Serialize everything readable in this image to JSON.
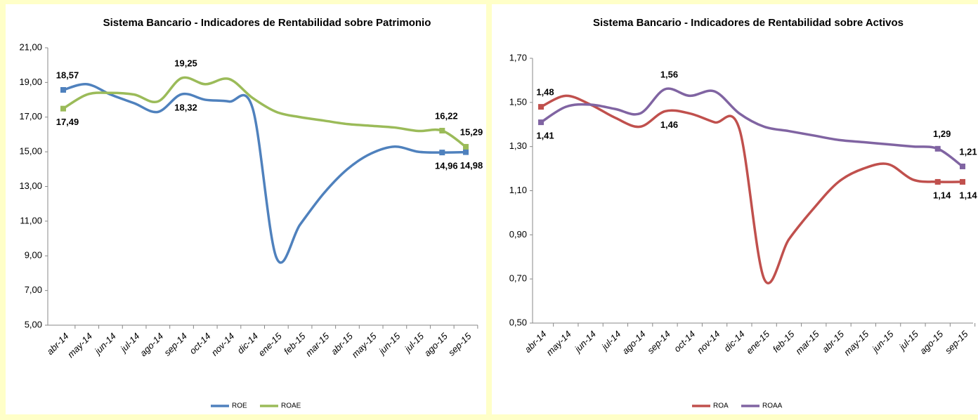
{
  "chart_data": [
    {
      "type": "line",
      "title": "Sistema Bancario - Indicadores de Rentabilidad sobre Patrimonio",
      "categories": [
        "abr-14",
        "may-14",
        "jun-14",
        "jul-14",
        "ago-14",
        "sep-14",
        "oct-14",
        "nov-14",
        "dic-14",
        "ene-15",
        "feb-15",
        "mar-15",
        "abr-15",
        "may-15",
        "jun-15",
        "jul-15",
        "ago-15",
        "sep-15"
      ],
      "series": [
        {
          "name": "ROE",
          "color": "#4f81bd",
          "values": [
            18.57,
            18.9,
            18.3,
            17.8,
            17.3,
            18.32,
            18.0,
            17.9,
            17.5,
            8.9,
            10.8,
            12.6,
            14.0,
            14.9,
            15.3,
            15.0,
            14.96,
            14.98
          ],
          "value_labels": [
            "18,57",
            null,
            null,
            null,
            null,
            "18,32",
            null,
            null,
            null,
            null,
            null,
            null,
            null,
            null,
            null,
            null,
            "14,96",
            "14,98"
          ]
        },
        {
          "name": "ROAE",
          "color": "#9bbb59",
          "values": [
            17.49,
            18.3,
            18.4,
            18.3,
            17.9,
            19.25,
            18.9,
            19.2,
            18.1,
            17.3,
            17.0,
            16.8,
            16.6,
            16.5,
            16.4,
            16.2,
            16.22,
            15.29
          ],
          "value_labels": [
            "17,49",
            null,
            null,
            null,
            null,
            "19,25",
            null,
            null,
            null,
            null,
            null,
            null,
            null,
            null,
            null,
            null,
            "16,22",
            "15,29"
          ]
        }
      ],
      "ylim": [
        5,
        21
      ],
      "yticks": [
        {
          "value": 5,
          "label": "5,00"
        },
        {
          "value": 7,
          "label": "7,00"
        },
        {
          "value": 9,
          "label": "9,00"
        },
        {
          "value": 11,
          "label": "11,00"
        },
        {
          "value": 13,
          "label": "13,00"
        },
        {
          "value": 15,
          "label": "15,00"
        },
        {
          "value": 17,
          "label": "17,00"
        },
        {
          "value": 19,
          "label": "19,00"
        },
        {
          "value": 21,
          "label": "21,00"
        }
      ]
    },
    {
      "type": "line",
      "title": "Sistema Bancario - Indicadores de Rentabilidad sobre Activos",
      "categories": [
        "abr-14",
        "may-14",
        "jun-14",
        "jul-14",
        "ago-14",
        "sep-14",
        "oct-14",
        "nov-14",
        "dic-14",
        "ene-15",
        "feb-15",
        "mar-15",
        "abr-15",
        "may-15",
        "jun-15",
        "jul-15",
        "ago-15",
        "sep-15"
      ],
      "series": [
        {
          "name": "ROA",
          "color": "#c0504d",
          "values": [
            1.48,
            1.53,
            1.49,
            1.43,
            1.39,
            1.46,
            1.45,
            1.41,
            1.38,
            0.7,
            0.88,
            1.02,
            1.14,
            1.2,
            1.22,
            1.15,
            1.14,
            1.14
          ],
          "value_labels": [
            "1,48",
            null,
            null,
            null,
            null,
            "1,46",
            null,
            null,
            null,
            null,
            null,
            null,
            null,
            null,
            null,
            null,
            "1,14",
            "1,14"
          ]
        },
        {
          "name": "ROAA",
          "color": "#8064a2",
          "values": [
            1.41,
            1.48,
            1.49,
            1.47,
            1.45,
            1.56,
            1.53,
            1.55,
            1.45,
            1.39,
            1.37,
            1.35,
            1.33,
            1.32,
            1.31,
            1.3,
            1.29,
            1.21
          ],
          "value_labels": [
            "1,41",
            null,
            null,
            null,
            null,
            "1,56",
            null,
            null,
            null,
            null,
            null,
            null,
            null,
            null,
            null,
            null,
            "1,29",
            "1,21"
          ]
        }
      ],
      "ylim": [
        0.5,
        1.7
      ],
      "yticks": [
        {
          "value": 0.5,
          "label": "0,50"
        },
        {
          "value": 0.7,
          "label": "0,70"
        },
        {
          "value": 0.9,
          "label": "0,90"
        },
        {
          "value": 1.1,
          "label": "1,10"
        },
        {
          "value": 1.3,
          "label": "1,30"
        },
        {
          "value": 1.5,
          "label": "1,50"
        },
        {
          "value": 1.7,
          "label": "1,70"
        }
      ]
    }
  ]
}
